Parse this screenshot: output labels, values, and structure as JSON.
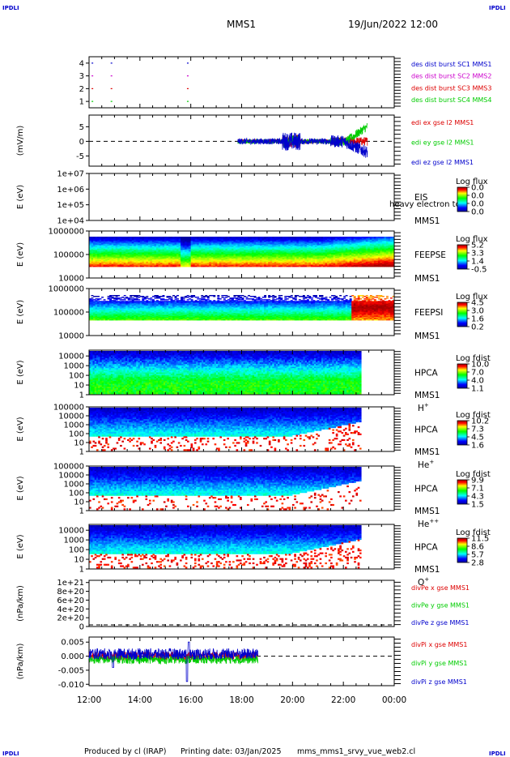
{
  "header": {
    "corner_logo": "IPDLI",
    "spacecraft": "MMS1",
    "datetime": "19/Jun/2022 12:00"
  },
  "footer": {
    "produced_by": "Produced by cl (IRAP)",
    "printing_date": "Printing date: 03/Jan/2025",
    "filename": "mms_mms1_srvy_vue_web2.cl"
  },
  "colors": {
    "blue": "#0000cc",
    "red": "#dd0000",
    "green": "#00cc00",
    "magenta": "#cc00cc",
    "axis": "#000000"
  },
  "chart_data": [
    {
      "id": "burst",
      "type": "scatter",
      "yticks": [
        "4",
        "3",
        "2",
        "1"
      ],
      "yrange": [
        0.5,
        4.5
      ],
      "legend": [
        {
          "label": "des dist burst SC1 MMS1",
          "color": "#0000cc"
        },
        {
          "label": "des dist burst SC2 MMS2",
          "color": "#cc00cc"
        },
        {
          "label": "des dist burst SC3 MMS3",
          "color": "#dd0000"
        },
        {
          "label": "des dist burst SC4 MMS4",
          "color": "#00cc00"
        }
      ],
      "burst_times_h": [
        12.1,
        12.85,
        15.85
      ],
      "burst_levels": [
        4,
        3,
        2,
        1
      ]
    },
    {
      "id": "edi",
      "type": "line",
      "ylabel": "(mV/m)",
      "yticks": [
        "5",
        "0",
        "-5"
      ],
      "yrange": [
        -8.5,
        9
      ],
      "xrange_h": [
        17.85,
        22.95
      ],
      "legend": [
        {
          "label": "edi ex gse l2 MMS1",
          "color": "#dd0000"
        },
        {
          "label": "edi ey gse l2 MMS1",
          "color": "#00cc00"
        },
        {
          "label": "edi ez gse l2 MMS1",
          "color": "#0000cc"
        }
      ]
    },
    {
      "id": "eis",
      "type": "heatmap",
      "ylabel": "E (eV)",
      "yticks": [
        "1e+07",
        "1e+06",
        "1e+05",
        "1e+04"
      ],
      "yrange": [
        10000,
        10000000
      ],
      "log_y": true,
      "inst": "EIS",
      "sc": "MMS1",
      "overlay_text": "heavy electron to",
      "colorbar_title": "Log flux",
      "colorbar_ticks": [
        "0.0",
        "0.0",
        "0.0",
        "0.0"
      ]
    },
    {
      "id": "feepse",
      "type": "heatmap",
      "ylabel": "E (eV)",
      "yticks": [
        "1000000",
        "100000",
        "10000"
      ],
      "yrange": [
        10000,
        1000000
      ],
      "log_y": true,
      "inst": "FEEPSE",
      "sc": "MMS1",
      "colorbar_title": "Log flux",
      "colorbar_ticks": [
        "5.2",
        "3.3",
        "1.4",
        "-0.5"
      ]
    },
    {
      "id": "feepsi",
      "type": "heatmap",
      "ylabel": "E (eV)",
      "yticks": [
        "1000000",
        "100000",
        "10000"
      ],
      "yrange": [
        10000,
        1000000
      ],
      "log_y": true,
      "inst": "FEEPSI",
      "sc": "MMS1",
      "colorbar_title": "Log flux",
      "colorbar_ticks": [
        "4.5",
        "3.0",
        "1.6",
        "0.2"
      ]
    },
    {
      "id": "hpca_h",
      "type": "heatmap",
      "ylabel": "E (eV)",
      "yticks": [
        "10000",
        "1000",
        "100",
        "10",
        "1"
      ],
      "yrange": [
        1,
        40000
      ],
      "log_y": true,
      "inst": "HPCA",
      "sc": "MMS1",
      "species": "H",
      "charge": "+",
      "colorbar_title": "Log fdist",
      "colorbar_ticks": [
        "10.0",
        "7.0",
        "4.0",
        "1.1"
      ],
      "data_end_h": 22.7
    },
    {
      "id": "hpca_he1",
      "type": "heatmap",
      "ylabel": "E (eV)",
      "yticks": [
        "100000",
        "10000",
        "1000",
        "100",
        "10",
        "1"
      ],
      "yrange": [
        1,
        100000
      ],
      "log_y": true,
      "inst": "HPCA",
      "sc": "MMS1",
      "species": "He",
      "charge": "+",
      "colorbar_title": "Log fdist",
      "colorbar_ticks": [
        "10.2",
        "7.3",
        "4.5",
        "1.6"
      ],
      "data_end_h": 22.7
    },
    {
      "id": "hpca_he2",
      "type": "heatmap",
      "ylabel": "E (eV)",
      "yticks": [
        "100000",
        "10000",
        "1000",
        "100",
        "10",
        "1"
      ],
      "yrange": [
        1,
        100000
      ],
      "log_y": true,
      "inst": "HPCA",
      "sc": "MMS1",
      "species": "He",
      "charge": "++",
      "colorbar_title": "Log fdist",
      "colorbar_ticks": [
        "9.9",
        "7.1",
        "4.3",
        "1.5"
      ],
      "data_end_h": 22.7
    },
    {
      "id": "hpca_o",
      "type": "heatmap",
      "ylabel": "E (eV)",
      "yticks": [
        "10000",
        "1000",
        "100",
        "10",
        "1"
      ],
      "yrange": [
        1,
        40000
      ],
      "log_y": true,
      "inst": "HPCA",
      "sc": "MMS1",
      "species": "O",
      "charge": "+",
      "colorbar_title": "Log fdist",
      "colorbar_ticks": [
        "11.5",
        "8.6",
        "5.7",
        "2.8"
      ],
      "data_end_h": 22.7
    },
    {
      "id": "divpe",
      "type": "line",
      "ylabel": "(nPa/km)",
      "yticks": [
        "1e+21",
        "8e+20",
        "6e+20",
        "4e+20",
        "2e+20",
        "0"
      ],
      "yrange": [
        0,
        1.05e+21
      ],
      "legend": [
        {
          "label": "divPe x gse MMS1",
          "color": "#dd0000"
        },
        {
          "label": "divPe y gse MMS1",
          "color": "#00cc00"
        },
        {
          "label": "divPe z gse MMS1",
          "color": "#0000cc"
        }
      ]
    },
    {
      "id": "divpi",
      "type": "line",
      "ylabel": "(nPa/km)",
      "yticks": [
        "0.005",
        "0.000",
        "-0.005",
        "-0.010"
      ],
      "yrange": [
        -0.0105,
        0.0068
      ],
      "xrange_h": [
        12.0,
        18.65
      ],
      "legend": [
        {
          "label": "divPi x gse MMS1",
          "color": "#dd0000"
        },
        {
          "label": "divPi y gse MMS1",
          "color": "#00cc00"
        },
        {
          "label": "divPi z gse MMS1",
          "color": "#0000cc"
        }
      ]
    }
  ],
  "time_axis": {
    "range_h": [
      12,
      24
    ],
    "ticks": [
      "12:00",
      "14:00",
      "16:00",
      "18:00",
      "20:00",
      "22:00",
      "00:00"
    ]
  }
}
